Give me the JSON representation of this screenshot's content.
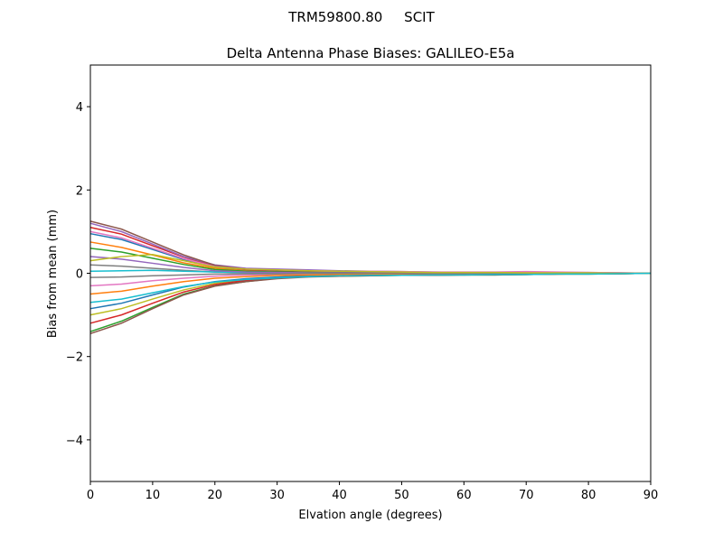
{
  "chart_data": {
    "type": "line",
    "suptitle": "TRM59800.80     SCIT",
    "title": "Delta Antenna Phase Biases: GALILEO-E5a",
    "x_label": "Elvation angle (degrees)",
    "y_label": "Bias from mean (mm)",
    "xlim": [
      0,
      90
    ],
    "xticks": [
      0,
      10,
      20,
      30,
      40,
      50,
      60,
      70,
      80,
      90
    ],
    "ylim": [
      -5,
      5
    ],
    "yticks": [
      {
        "value": -4,
        "label": "−4"
      },
      {
        "value": -2,
        "label": "−2"
      },
      0,
      2,
      4
    ],
    "grid": false,
    "x": [
      0,
      5,
      10,
      15,
      20,
      25,
      30,
      35,
      40,
      45,
      50,
      55,
      60,
      65,
      70,
      75,
      80,
      85,
      90
    ],
    "series": [
      {
        "color": "#1f77b4",
        "values": [
          0.95,
          0.81,
          0.57,
          0.33,
          0.14,
          0.08,
          0.05,
          0.03,
          0.02,
          0.02,
          0.01,
          0.01,
          0.01,
          0.01,
          0.01,
          0,
          0,
          0,
          0
        ]
      },
      {
        "color": "#ff7f0e",
        "values": [
          0.75,
          0.62,
          0.44,
          0.25,
          0.12,
          0.06,
          0.04,
          0.02,
          0.02,
          0.02,
          0.01,
          0.01,
          0.01,
          0.01,
          0.01,
          0,
          0,
          0,
          0
        ]
      },
      {
        "color": "#2ca02c",
        "values": [
          -1.4,
          -1.15,
          -0.82,
          -0.5,
          -0.3,
          -0.2,
          -0.12,
          -0.08,
          -0.07,
          -0.06,
          -0.05,
          -0.05,
          -0.04,
          -0.04,
          -0.03,
          -0.02,
          -0.02,
          -0.01,
          0
        ]
      },
      {
        "color": "#d62728",
        "values": [
          1.1,
          0.94,
          0.66,
          0.39,
          0.17,
          0.09,
          0.06,
          0.03,
          0.02,
          0.02,
          0.01,
          0.01,
          0.01,
          0.01,
          0.01,
          0,
          0,
          0,
          0
        ]
      },
      {
        "color": "#9467bd",
        "values": [
          1.2,
          1.0,
          0.7,
          0.4,
          0.2,
          0.12,
          0.1,
          0.08,
          0.06,
          0.05,
          0.04,
          0.03,
          0.02,
          0.02,
          0.03,
          0.02,
          0.02,
          0.01,
          0
        ]
      },
      {
        "color": "#8c564b",
        "values": [
          1.25,
          1.06,
          0.75,
          0.44,
          0.19,
          0.1,
          0.06,
          0.04,
          0.03,
          0.03,
          0.01,
          0.01,
          0.01,
          0.01,
          0.01,
          0,
          0,
          0,
          0
        ]
      },
      {
        "color": "#e377c2",
        "values": [
          -0.3,
          -0.26,
          -0.18,
          -0.12,
          -0.07,
          -0.04,
          -0.03,
          -0.02,
          -0.02,
          -0.01,
          -0.01,
          -0.01,
          -0.01,
          0,
          0,
          0,
          0,
          0,
          0
        ]
      },
      {
        "color": "#7f7f7f",
        "values": [
          0.2,
          0.17,
          0.12,
          0.07,
          0.03,
          0.02,
          0.01,
          0.01,
          0,
          0,
          0,
          0,
          0,
          0,
          0,
          0,
          0,
          0,
          0
        ]
      },
      {
        "color": "#bcbd22",
        "values": [
          -1.0,
          -0.85,
          -0.62,
          -0.4,
          -0.24,
          -0.15,
          -0.1,
          -0.07,
          -0.06,
          -0.05,
          -0.04,
          -0.04,
          -0.03,
          -0.03,
          -0.02,
          -0.02,
          -0.01,
          -0.01,
          0
        ]
      },
      {
        "color": "#17becf",
        "values": [
          0.05,
          0.06,
          0.07,
          0.05,
          0.03,
          0.02,
          0.01,
          0,
          0,
          0,
          0,
          0,
          0,
          0,
          0,
          0,
          0,
          0,
          0
        ]
      },
      {
        "color": "#1f77b4",
        "values": [
          -0.85,
          -0.72,
          -0.52,
          -0.33,
          -0.2,
          -0.13,
          -0.09,
          -0.06,
          -0.05,
          -0.04,
          -0.04,
          -0.03,
          -0.03,
          -0.02,
          -0.02,
          -0.01,
          -0.01,
          0,
          0
        ]
      },
      {
        "color": "#ff7f0e",
        "values": [
          -0.5,
          -0.43,
          -0.31,
          -0.2,
          -0.12,
          -0.08,
          -0.05,
          -0.04,
          -0.03,
          -0.03,
          -0.02,
          -0.02,
          -0.02,
          -0.01,
          -0.01,
          -0.01,
          0,
          0,
          0
        ]
      },
      {
        "color": "#2ca02c",
        "values": [
          0.6,
          0.51,
          0.36,
          0.21,
          0.09,
          0.05,
          0.03,
          0.02,
          0.01,
          0.01,
          0.01,
          0.01,
          0.01,
          0.01,
          0.01,
          0,
          0,
          0,
          0
        ]
      },
      {
        "color": "#d62728",
        "values": [
          -1.2,
          -1.0,
          -0.72,
          -0.45,
          -0.27,
          -0.17,
          -0.11,
          -0.08,
          -0.06,
          -0.05,
          -0.05,
          -0.04,
          -0.04,
          -0.03,
          -0.03,
          -0.02,
          -0.01,
          -0.01,
          0
        ]
      },
      {
        "color": "#9467bd",
        "values": [
          0.4,
          0.34,
          0.24,
          0.14,
          0.06,
          0.03,
          0.02,
          0.01,
          0.01,
          0.01,
          0,
          0,
          0,
          0,
          0,
          0,
          0,
          0,
          0
        ]
      },
      {
        "color": "#8c564b",
        "values": [
          -1.45,
          -1.2,
          -0.85,
          -0.52,
          -0.31,
          -0.2,
          -0.13,
          -0.09,
          -0.07,
          -0.06,
          -0.05,
          -0.05,
          -0.04,
          -0.04,
          -0.03,
          -0.02,
          -0.02,
          -0.01,
          0
        ]
      },
      {
        "color": "#e377c2",
        "values": [
          1.0,
          0.85,
          0.6,
          0.35,
          0.16,
          0.1,
          0.08,
          0.06,
          0.05,
          0.05,
          0.04,
          0.03,
          0.03,
          0.03,
          0.04,
          0.03,
          0.02,
          0.01,
          0
        ]
      },
      {
        "color": "#7f7f7f",
        "values": [
          -0.1,
          -0.09,
          -0.06,
          -0.04,
          -0.02,
          -0.01,
          -0.01,
          0,
          0,
          0,
          0,
          0,
          0,
          0,
          0,
          0,
          0,
          0,
          0
        ]
      },
      {
        "color": "#bcbd22",
        "values": [
          0.3,
          0.4,
          0.45,
          0.3,
          0.15,
          0.1,
          0.08,
          0.06,
          0.05,
          0.04,
          0.03,
          0.02,
          0.02,
          0.02,
          0.01,
          0.01,
          0.01,
          0,
          0
        ]
      },
      {
        "color": "#17becf",
        "values": [
          -0.7,
          -0.62,
          -0.47,
          -0.32,
          -0.21,
          -0.15,
          -0.11,
          -0.08,
          -0.06,
          -0.05,
          -0.05,
          -0.04,
          -0.04,
          -0.03,
          -0.03,
          -0.02,
          -0.02,
          -0.01,
          0
        ]
      }
    ]
  }
}
